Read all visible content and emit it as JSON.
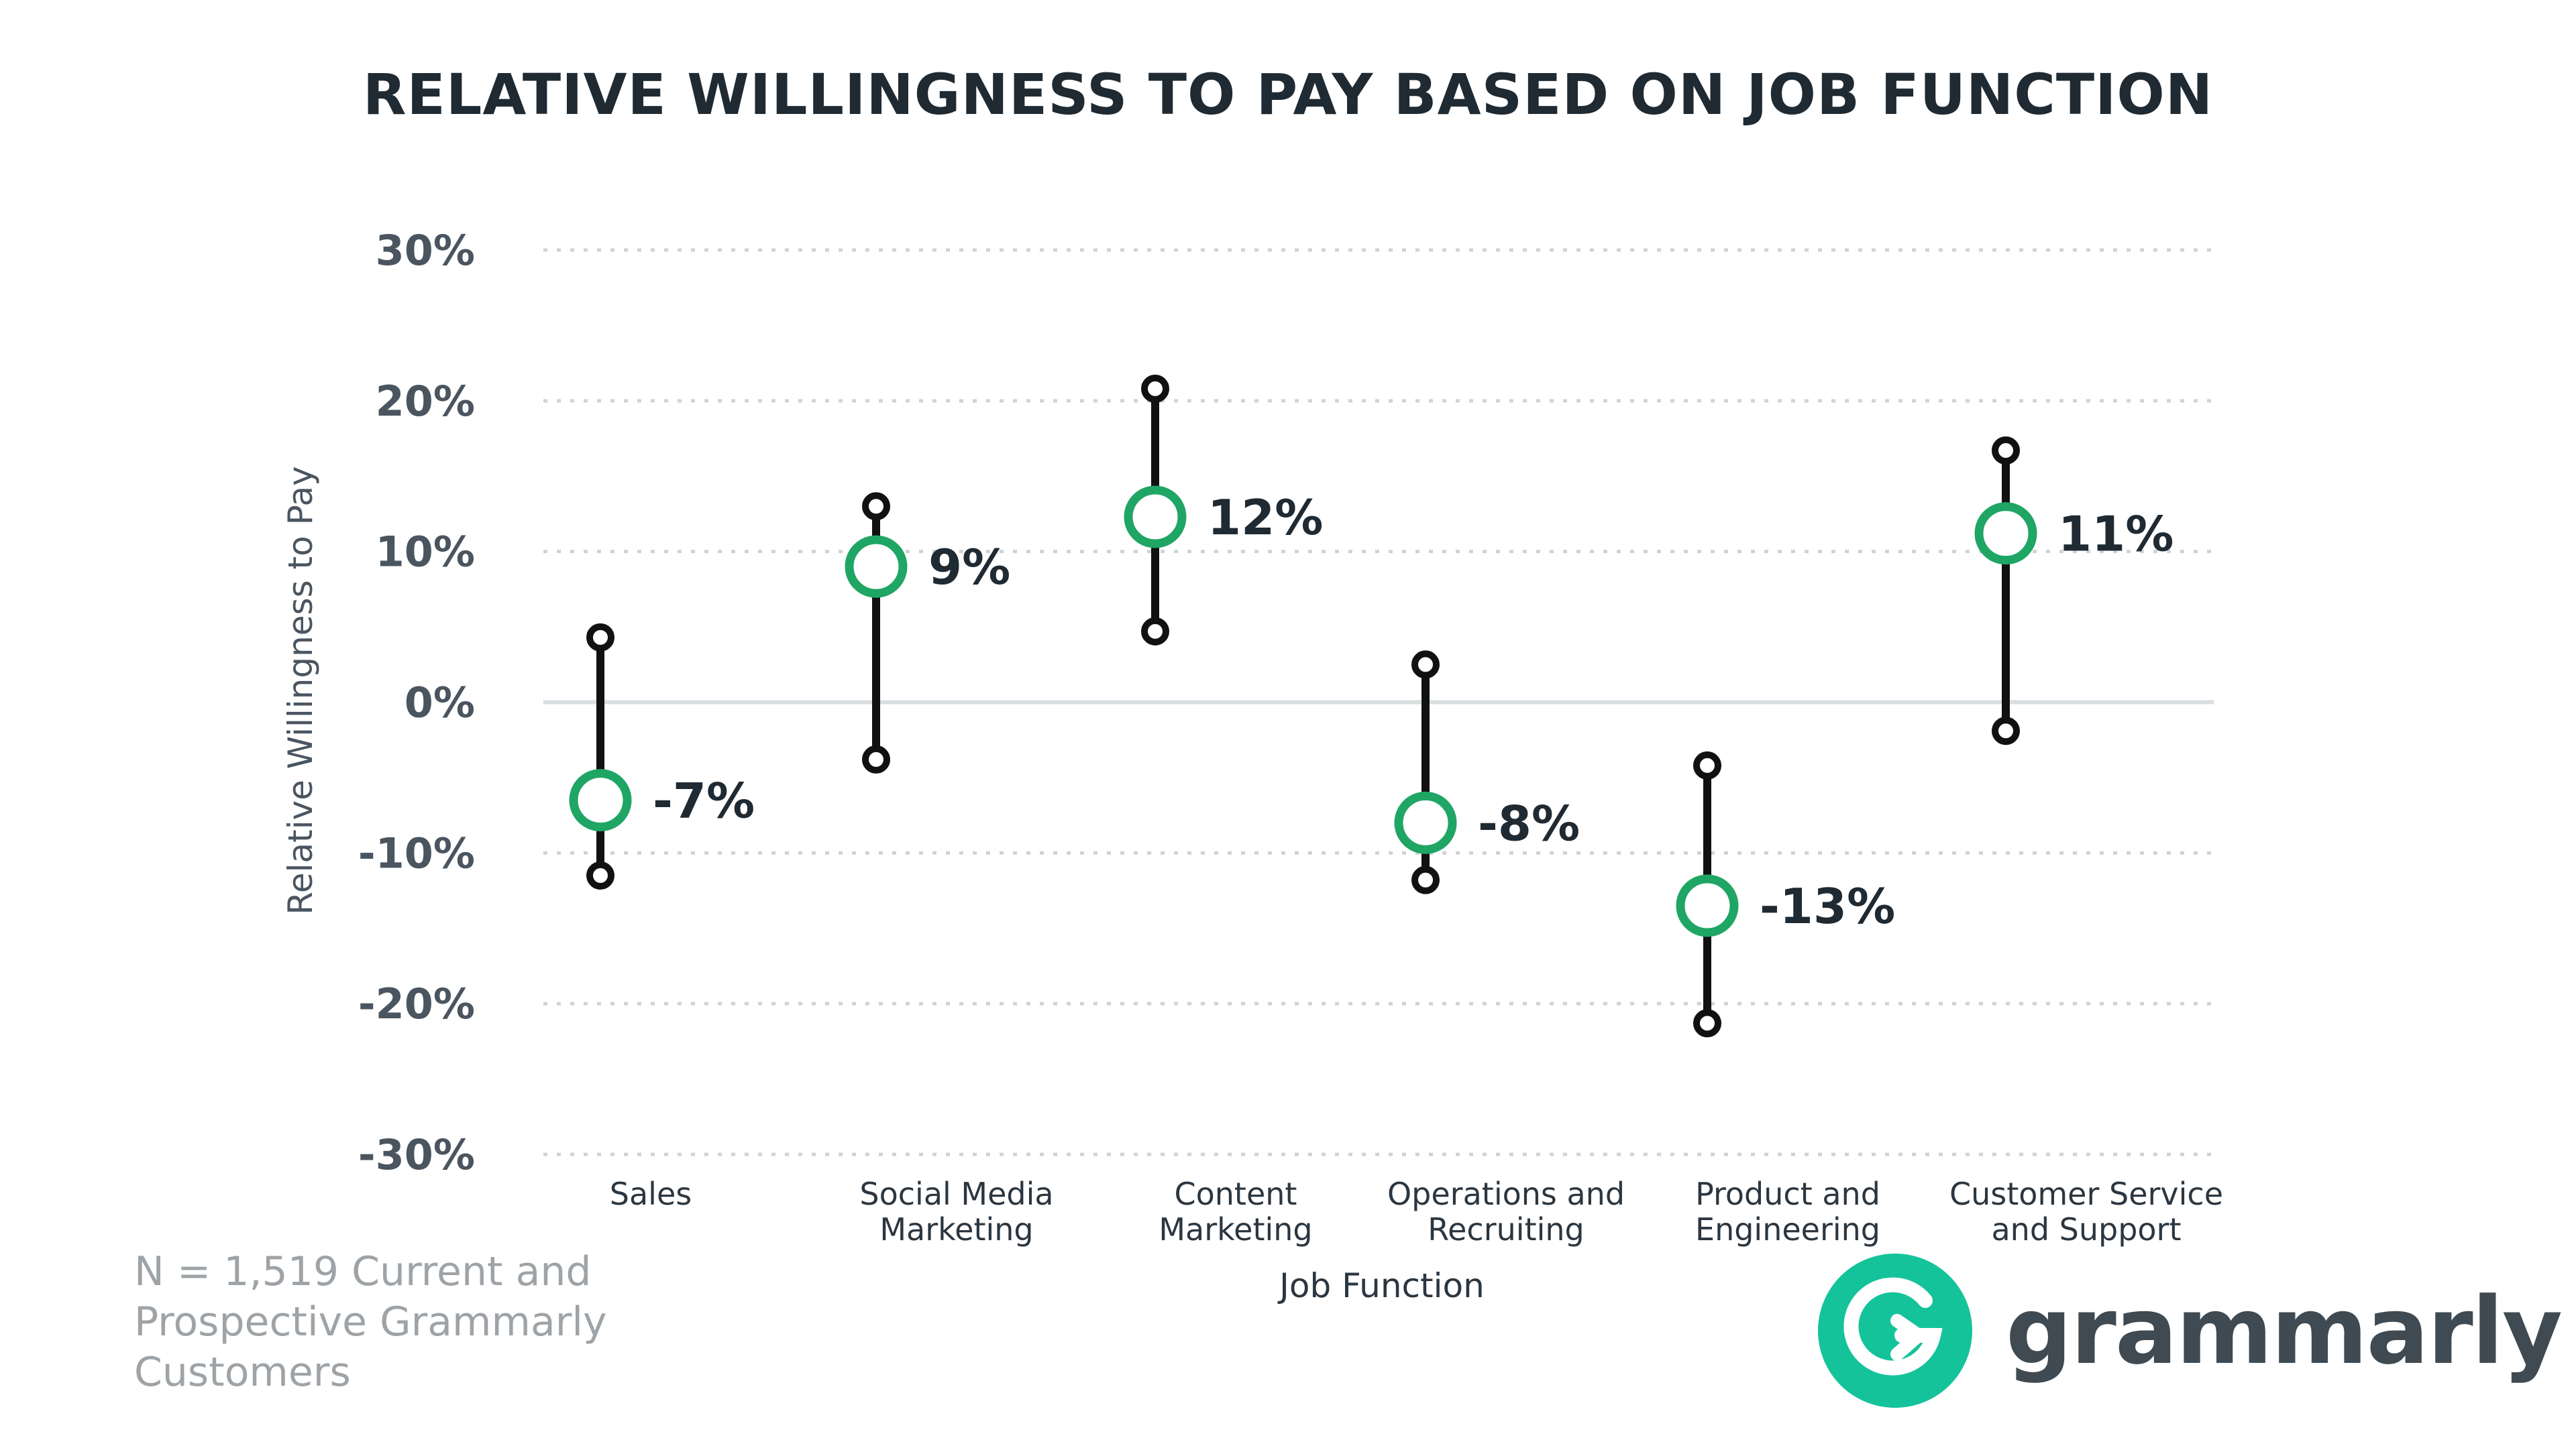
{
  "colors": {
    "marker": "#1fa564",
    "stem": "#111111",
    "grid": "#cfd3d6",
    "zero_line": "#d9dee1",
    "tick_text": "#4a5560",
    "title_text": "#1f2a33",
    "footnote_text": "#9ea3a7",
    "brand_green": "#15c39a"
  },
  "title": "RELATIVE WILLINGNESS TO PAY BASED ON JOB FUNCTION",
  "footnote": "N = 1,519 Current and Prospective Grammarly Customers",
  "brand": {
    "name": "grammarly",
    "logo_icon": "grammarly-g-icon"
  },
  "chart_data": {
    "type": "scatter",
    "title": "RELATIVE WILLINGNESS TO PAY BASED ON JOB FUNCTION",
    "xlabel": "Job Function",
    "ylabel": "Relative Willingness to Pay",
    "ylim": [
      -30,
      30
    ],
    "yticks": [
      30,
      20,
      10,
      0,
      -10,
      -20,
      -30
    ],
    "ytick_labels": [
      "30%",
      "20%",
      "10%",
      "0%",
      "-10%",
      "-20%",
      "-30%"
    ],
    "grid": true,
    "categories": [
      {
        "lines": [
          "Sales"
        ]
      },
      {
        "lines": [
          "Social Media",
          "Marketing"
        ]
      },
      {
        "lines": [
          "Content",
          "Marketing"
        ]
      },
      {
        "lines": [
          "Operations and",
          "Recruiting"
        ]
      },
      {
        "lines": [
          "Product and",
          "Engineering"
        ]
      },
      {
        "lines": [
          "Customer Service",
          "and Support"
        ]
      }
    ],
    "points": [
      {
        "value": -6.5,
        "label": "-7%",
        "low": -11.5,
        "high": 4.3
      },
      {
        "value": 9,
        "label": "9%",
        "low": -3.8,
        "high": 13
      },
      {
        "value": 12.3,
        "label": "12%",
        "low": 4.7,
        "high": 20.8
      },
      {
        "value": -8,
        "label": "-8%",
        "low": -11.8,
        "high": 2.5
      },
      {
        "value": -13.5,
        "label": "-13%",
        "low": -21.3,
        "high": -4.2
      },
      {
        "value": 11.2,
        "label": "11%",
        "low": -1.9,
        "high": 16.7
      }
    ]
  }
}
